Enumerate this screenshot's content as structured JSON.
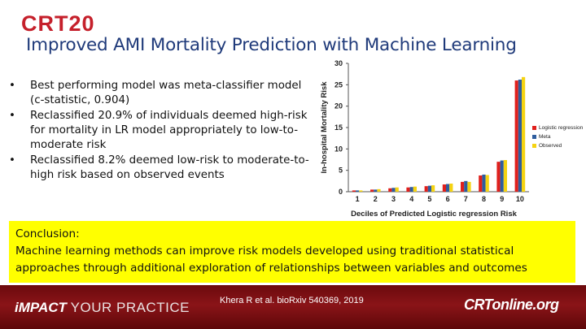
{
  "header": {
    "logo_text": "CRT20",
    "title": "Improved AMI Mortality Prediction with Machine Learning"
  },
  "bullets": [
    "Best performing model was meta-classifier model (c-statistic, 0.904)",
    "Reclassified 20.9% of individuals deemed high-risk for mortality in LR model appropriately to low-to-moderate risk",
    "Reclassified 8.2% deemed low-risk to moderate-to-high risk based on observed events"
  ],
  "bullet_marker": "•",
  "chart_data": {
    "type": "bar",
    "xlabel": "Deciles of Predicted Logistic regression Risk",
    "ylabel": "In-hospital Mortality Risk",
    "categories": [
      "1",
      "2",
      "3",
      "4",
      "5",
      "6",
      "7",
      "8",
      "9",
      "10"
    ],
    "ylim": [
      0,
      30
    ],
    "yticks": [
      0,
      5,
      10,
      15,
      20,
      25,
      30
    ],
    "grid": false,
    "legend_position": "right",
    "series": [
      {
        "name": "Logistic regression",
        "color": "#e0201c",
        "values": [
          0.3,
          0.5,
          0.8,
          1.0,
          1.3,
          1.7,
          2.3,
          3.8,
          7.0,
          26.0
        ]
      },
      {
        "name": "Meta",
        "color": "#2f5d9e",
        "values": [
          0.3,
          0.5,
          0.9,
          1.1,
          1.4,
          1.8,
          2.5,
          4.0,
          7.3,
          26.2
        ]
      },
      {
        "name": "Observed",
        "color": "#f5d312",
        "values": [
          0.3,
          0.6,
          1.0,
          1.2,
          1.5,
          1.9,
          2.3,
          3.9,
          7.4,
          26.8
        ]
      }
    ]
  },
  "conclusion": {
    "heading": "Conclusion:",
    "text": "Machine learning methods can improve risk models developed using traditional statistical approaches through additional exploration of relationships between variables and outcomes"
  },
  "footer": {
    "impact_word": "iMPACT",
    "impact_rest": "YOUR PRACTICE",
    "citation": "Khera R et al. bioRxiv 540369, 2019",
    "brand": "CRTonline.org"
  }
}
